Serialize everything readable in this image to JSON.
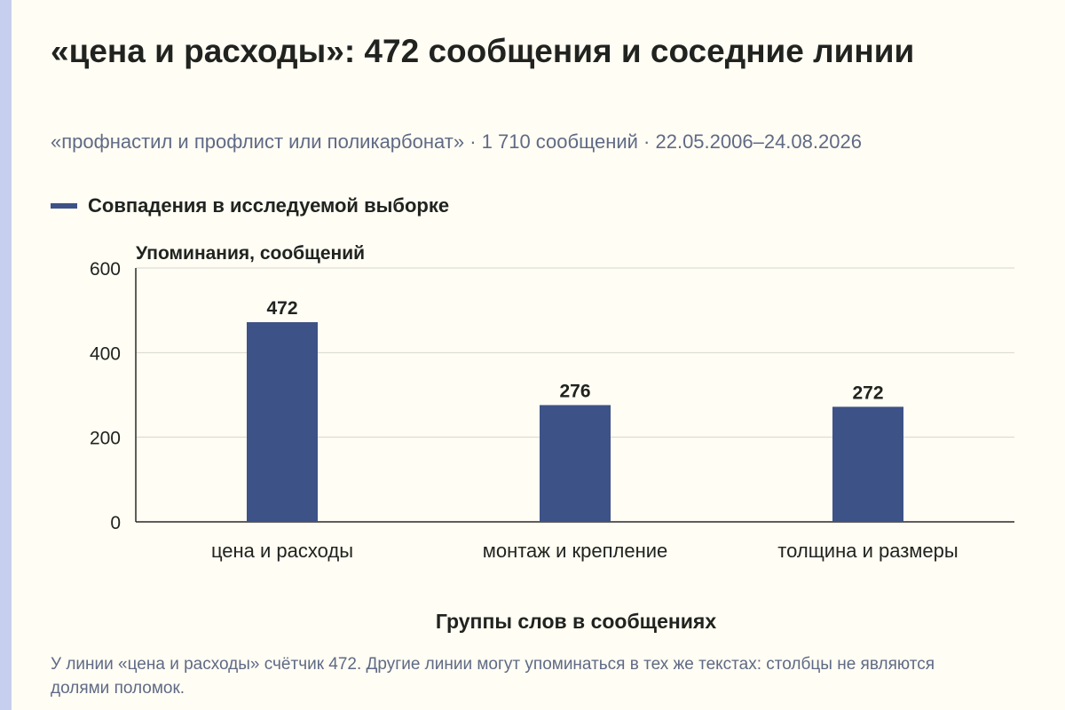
{
  "header": {
    "title": "«цена и расходы»: 472 сообщения и соседние линии",
    "subtitle": "«профнастил и профлист или поликарбонат» · 1 710 сообщений · 22.05.2006–24.08.2026"
  },
  "legend": {
    "label": "Совпадения в исследуемой выборке"
  },
  "chart_data": {
    "type": "bar",
    "title": "«цена и расходы»: 472 сообщения и соседние линии",
    "categories": [
      "цена и расходы",
      "монтаж и крепление",
      "толщина и размеры"
    ],
    "series": [
      {
        "name": "Совпадения в исследуемой выборке",
        "values": [
          472,
          276,
          272
        ]
      }
    ],
    "ylabel": "Упоминания, сообщений",
    "xlabel": "Группы слов в сообщениях",
    "ylim": [
      0,
      600
    ],
    "yticks": [
      0,
      200,
      400,
      600
    ],
    "grid": true,
    "legend_position": "top-left",
    "data_labels": true,
    "bar_color": "#3d5287"
  },
  "footnote": "У линии «цена и расходы» счётчик 472. Другие линии могут упоминаться в тех же текстах: столбцы не являются долями поломок."
}
